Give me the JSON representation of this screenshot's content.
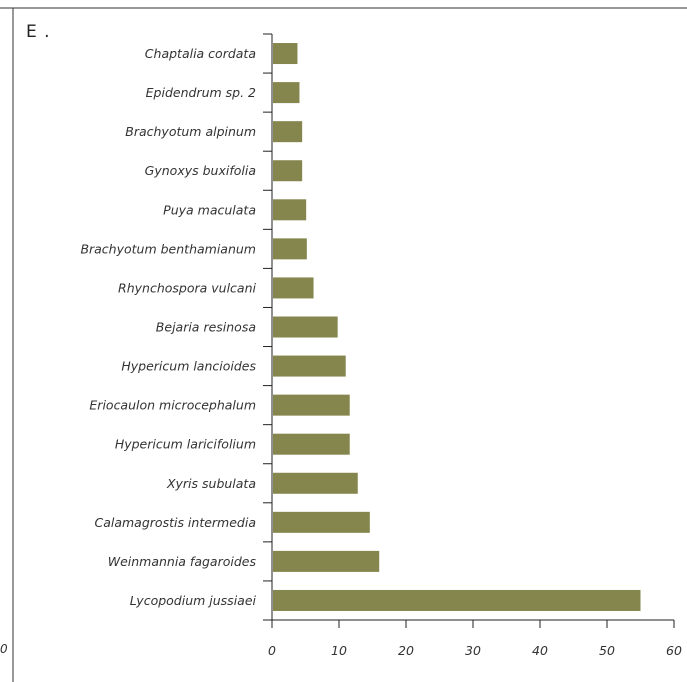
{
  "panel": {
    "letter": "E .",
    "cut_tick_label": "0"
  },
  "colors": {
    "bar": "#85864d",
    "axis": "#222222",
    "frame": "#333333",
    "text": "#333333"
  },
  "chart_data": {
    "type": "bar",
    "orientation": "horizontal",
    "categories": [
      "Chaptalia cordata",
      "Epidendrum sp. 2",
      "Brachyotum alpinum",
      "Gynoxys buxifolia",
      "Puya maculata",
      "Brachyotum benthamianum",
      "Rhynchospora vulcani",
      "Bejaria resinosa",
      "Hypericum lancioides",
      "Eriocaulon microcephalum",
      "Hypericum laricifolium",
      "Xyris subulata",
      "Calamagrostis intermedia",
      "Weinmannia fagaroides",
      "Lycopodium jussiaei"
    ],
    "values": [
      3.8,
      4.1,
      4.5,
      4.5,
      5.1,
      5.2,
      6.2,
      9.8,
      11.0,
      11.6,
      11.6,
      12.8,
      14.6,
      16.0,
      55.0
    ],
    "xlim": [
      0,
      60
    ],
    "xticks": [
      "0",
      "10",
      "20",
      "30",
      "40",
      "50",
      "60"
    ],
    "title": "",
    "xlabel": "",
    "ylabel": "",
    "grid": false
  }
}
